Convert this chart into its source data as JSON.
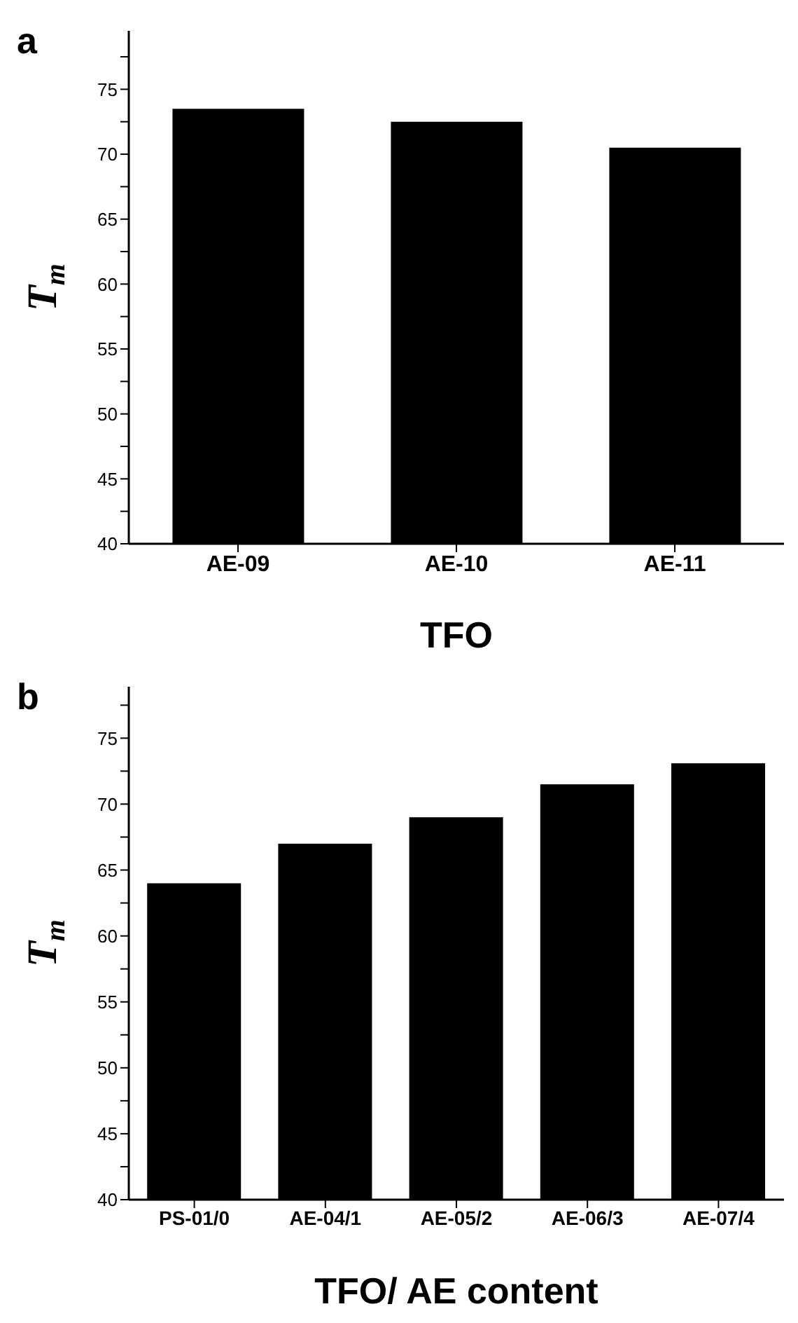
{
  "chart_data": [
    {
      "type": "bar",
      "title": "a",
      "xlabel": "TFO",
      "ylabel": "T$_{m}$",
      "categories": [
        "AE-09",
        "AE-10",
        "AE-11"
      ],
      "values": [
        73.5,
        72.5,
        70.5
      ],
      "color": "#000000",
      "ylim": [
        40,
        79.5
      ],
      "yticks": [
        40,
        {
          "value": 42.5,
          "label": null
        },
        45,
        {
          "value": 47.5,
          "label": null
        },
        50,
        {
          "value": 52.5,
          "label": null
        },
        55,
        {
          "value": 57.5,
          "label": null
        },
        60,
        {
          "value": 62.5,
          "label": null
        },
        65,
        {
          "value": 67.5,
          "label": null
        },
        70,
        {
          "value": 72.5,
          "label": null
        },
        75,
        {
          "value": 77.5,
          "label": null
        }
      ]
    },
    {
      "type": "bar",
      "title": "b",
      "xlabel": "TFO/ AE content",
      "ylabel": "T$_{m}$",
      "categories": [
        "PS-01/0",
        "AE-04/1",
        "AE-05/2",
        "AE-06/3",
        "AE-07/4"
      ],
      "values": [
        64,
        67,
        69,
        71.5,
        73.1
      ],
      "color": "#000000",
      "ylim": [
        40,
        78.9
      ],
      "yticks": [
        40,
        {
          "value": 42.5,
          "label": null
        },
        45,
        {
          "value": 47.5,
          "label": null
        },
        50,
        {
          "value": 52.5,
          "label": null
        },
        55,
        {
          "value": 57.5,
          "label": null
        },
        60,
        {
          "value": 62.5,
          "label": null
        },
        65,
        {
          "value": 67.5,
          "label": null
        },
        70,
        {
          "value": 72.5,
          "label": null
        },
        75,
        {
          "value": 77.5,
          "label": null
        }
      ]
    }
  ]
}
